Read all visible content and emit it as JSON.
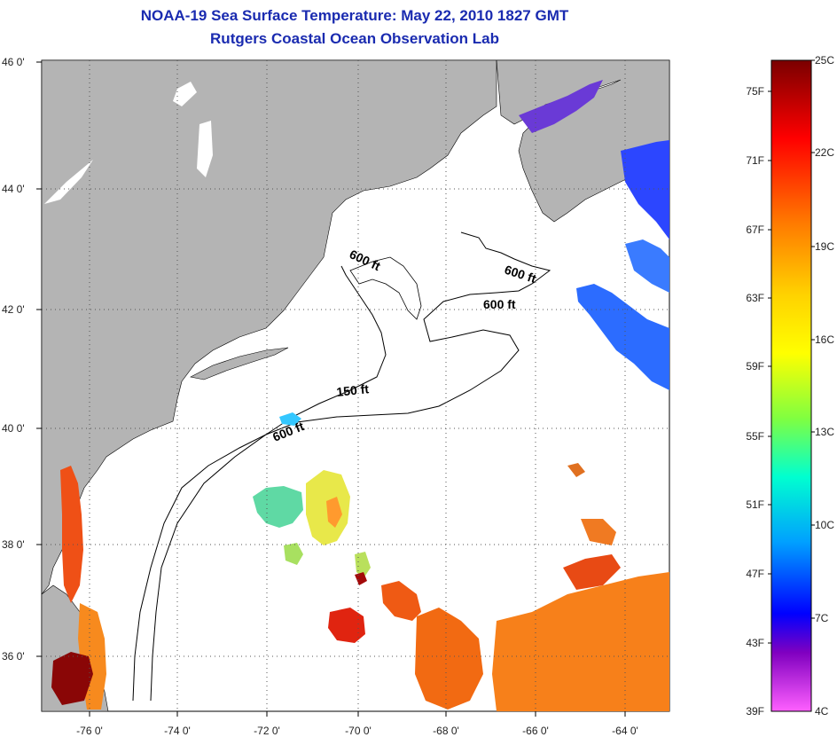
{
  "header": {
    "title": "NOAA-19 Sea Surface Temperature:  May 22, 2010 1827 GMT",
    "subtitle": "Rutgers Coastal Ocean Observation Lab"
  },
  "map": {
    "lat_labels": [
      "46 0'",
      "44 0'",
      "42 0'",
      "40 0'",
      "38 0'",
      "36 0'"
    ],
    "lon_labels": [
      "-76 0'",
      "-74 0'",
      "-72 0'",
      "-70 0'",
      "-68 0'",
      "-66 0'",
      "-64 0'"
    ],
    "isobath_labels": [
      "600 ft",
      "600 ft",
      "600 ft",
      "150 ft",
      "600 ft"
    ],
    "colors": {
      "land": "#b4b4b4",
      "ocean": "#ffffff",
      "grid": "#555555"
    }
  },
  "colorbar": {
    "fahrenheit_labels": [
      "75F",
      "71F",
      "67F",
      "63F",
      "59F",
      "55F",
      "51F",
      "47F",
      "43F",
      "39F"
    ],
    "celsius_labels": [
      "25C",
      "22C",
      "19C",
      "16C",
      "13C",
      "10C",
      "7C",
      "4C"
    ],
    "gradient_colors": [
      "#7a0000",
      "#ff0000",
      "#ff7a00",
      "#ffd200",
      "#ffff00",
      "#80ff40",
      "#00ffd0",
      "#00a0ff",
      "#0000ff",
      "#8000c0",
      "#ff60ff"
    ]
  }
}
